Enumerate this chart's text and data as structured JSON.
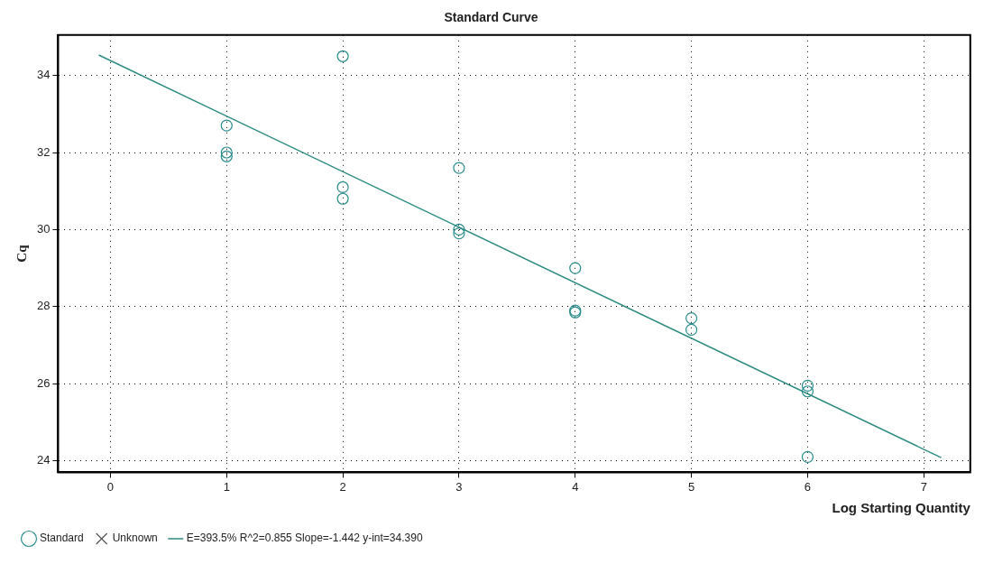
{
  "chart_data": {
    "type": "scatter",
    "title": "Standard Curve",
    "xlabel": "Log Starting Quantity",
    "ylabel": "Cq",
    "xlim": [
      -0.45,
      7.4
    ],
    "xticks": [
      0,
      1,
      2,
      3,
      4,
      5,
      6,
      7
    ],
    "ylim": [
      23.7,
      35.05
    ],
    "yticks": [
      24,
      26,
      28,
      30,
      32,
      34
    ],
    "grid": true,
    "legend": "bottom",
    "series": [
      {
        "name": "Standard",
        "marker": "circle",
        "color": "#2a8c8c",
        "x": [
          1,
          1,
          1,
          2,
          2,
          2,
          3,
          3,
          3,
          4,
          4,
          4,
          5,
          5,
          6,
          6,
          6
        ],
        "values": [
          32.7,
          32.0,
          31.9,
          34.5,
          31.1,
          30.8,
          31.6,
          30.0,
          29.9,
          29.0,
          27.9,
          27.85,
          27.7,
          27.4,
          25.95,
          25.8,
          24.1
        ]
      },
      {
        "name": "Unknown",
        "type": "scatter",
        "marker": "cross",
        "color": "#555555"
      },
      {
        "name": "E=393.5% R^2=0.855 Slope=-1.442 y-int=34.390",
        "type": "line",
        "marker": "none",
        "color": "#2e8b80",
        "x": [
          -0.1,
          7.15
        ],
        "values": [
          34.53,
          24.08
        ]
      }
    ]
  }
}
